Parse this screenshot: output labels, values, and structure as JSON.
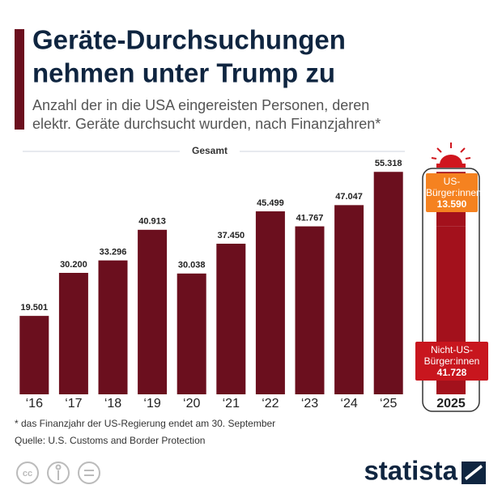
{
  "chart_data": {
    "type": "bar",
    "title": [
      "Geräte-Durchsuchungen",
      "nehmen unter Trump zu"
    ],
    "subtitle": [
      "Anzahl der in die USA eingereisten Personen, deren",
      "elektr. Geräte durchsucht wurden, nach Finanzjahren*"
    ],
    "group_label": "Gesamt",
    "categories": [
      "‘16",
      "‘17",
      "‘18",
      "‘19",
      "‘20",
      "‘21",
      "‘22",
      "‘23",
      "‘24",
      "‘25"
    ],
    "values": [
      19501,
      30200,
      33296,
      40913,
      30038,
      37450,
      45499,
      41767,
      47047,
      55318
    ],
    "value_labels": [
      "19.501",
      "30.200",
      "33.296",
      "40.913",
      "30.038",
      "37.450",
      "45.499",
      "41.767",
      "47.047",
      "55.318"
    ],
    "color": "#6b0f1e",
    "ylim": [
      0,
      60000
    ],
    "breakdown": {
      "category": "2025",
      "series": [
        {
          "name": "Nicht-US-Bürger:innen",
          "values": [
            41728
          ],
          "value_labels": [
            "41.728"
          ],
          "color": "#a3111c",
          "label_color": "#c8161e"
        },
        {
          "name": "US-Bürger:innen",
          "values": [
            13590
          ],
          "value_labels": [
            "13.590"
          ],
          "color": "#a3111c",
          "label_color": "#f58220"
        }
      ]
    },
    "footnote": "* das Finanzjahr der US-Regierung endet am 30. September",
    "source": "Quelle: U.S. Customs and Border Protection",
    "brand": "statista"
  }
}
